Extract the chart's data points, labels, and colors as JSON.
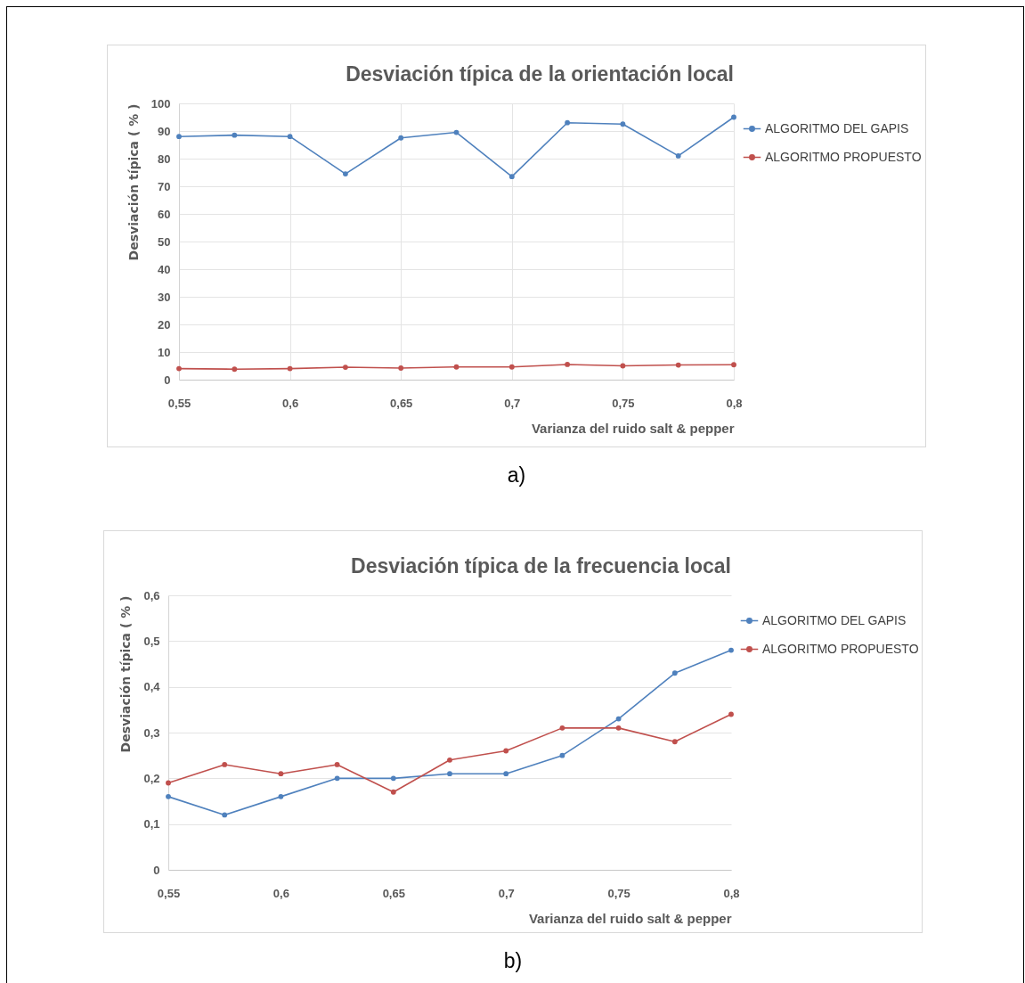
{
  "chart_data": [
    {
      "type": "line",
      "title": "Desviación típica de la orientación local",
      "xlabel": "Varianza del ruido salt & pepper",
      "ylabel": "Desviación típica ( % )",
      "annotations": [
        "a)"
      ],
      "x": [
        0.55,
        0.575,
        0.6,
        0.625,
        0.65,
        0.675,
        0.7,
        0.725,
        0.75,
        0.775,
        0.8
      ],
      "series": [
        {
          "name": "ALGORITMO DEL GAPIS",
          "color": "#4f81bd",
          "values": [
            88,
            88.5,
            88,
            74.5,
            87.5,
            89.5,
            73.5,
            93,
            92.5,
            81,
            95
          ]
        },
        {
          "name": "ALGORITMO PROPUESTO",
          "color": "#c0504d",
          "values": [
            4,
            3.8,
            4,
            4.5,
            4.2,
            4.6,
            4.6,
            5.5,
            5,
            5.3,
            5.4
          ]
        }
      ],
      "xlim": [
        0.55,
        0.8
      ],
      "xticks": [
        {
          "value": 0.55,
          "label": "0,55"
        },
        {
          "value": 0.6,
          "label": "0,6"
        },
        {
          "value": 0.65,
          "label": "0,65"
        },
        {
          "value": 0.7,
          "label": "0,7"
        },
        {
          "value": 0.75,
          "label": "0,75"
        },
        {
          "value": 0.8,
          "label": "0,8"
        }
      ],
      "ylim": [
        0,
        100
      ],
      "yticks": [
        0,
        10,
        20,
        30,
        40,
        50,
        60,
        70,
        80,
        90,
        100
      ],
      "grid": true,
      "legend": "right",
      "marker": "circle",
      "line_style": "solid"
    },
    {
      "type": "line",
      "title": "Desviación típica de la frecuencia local",
      "xlabel": "Varianza del ruido  salt & pepper",
      "ylabel": "Desviación típica ( % )",
      "annotations": [
        "b)"
      ],
      "x": [
        0.55,
        0.575,
        0.6,
        0.625,
        0.65,
        0.675,
        0.7,
        0.725,
        0.75,
        0.775,
        0.8
      ],
      "series": [
        {
          "name": "ALGORITMO DEL GAPIS",
          "color": "#4f81bd",
          "values": [
            0.16,
            0.12,
            0.16,
            0.2,
            0.2,
            0.21,
            0.21,
            0.25,
            0.33,
            0.43,
            0.48
          ]
        },
        {
          "name": "ALGORITMO PROPUESTO",
          "color": "#c0504d",
          "values": [
            0.19,
            0.23,
            0.21,
            0.23,
            0.17,
            0.24,
            0.26,
            0.31,
            0.31,
            0.28,
            0.34
          ]
        }
      ],
      "xlim": [
        0.55,
        0.8
      ],
      "xticks": [
        {
          "value": 0.55,
          "label": "0,55"
        },
        {
          "value": 0.6,
          "label": "0,6"
        },
        {
          "value": 0.65,
          "label": "0,65"
        },
        {
          "value": 0.7,
          "label": "0,7"
        },
        {
          "value": 0.75,
          "label": "0,75"
        },
        {
          "value": 0.8,
          "label": "0,8"
        }
      ],
      "ylim": [
        0,
        0.6
      ],
      "yticks": [
        0,
        {
          "value": 0.1,
          "label": "0,1"
        },
        {
          "value": 0.2,
          "label": "0,2"
        },
        {
          "value": 0.3,
          "label": "0,3"
        },
        {
          "value": 0.4,
          "label": "0,4"
        },
        {
          "value": 0.5,
          "label": "0,5"
        },
        {
          "value": 0.6,
          "label": "0,6"
        }
      ],
      "grid": "y",
      "legend": "right",
      "marker": "circle",
      "line_style": "solid"
    }
  ]
}
